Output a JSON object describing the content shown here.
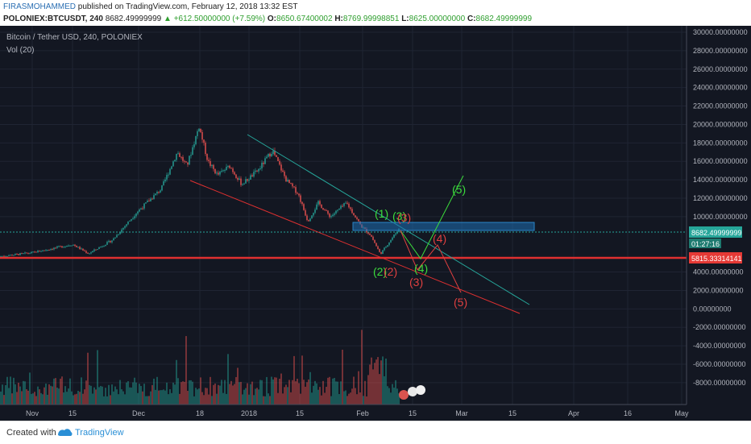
{
  "header": {
    "author": "FIRASMOHAMMED",
    "published": "published on TradingView.com, February 12, 2018 13:32 EST",
    "symbol": "POLONIEX:BTCUSDT, 240",
    "last": "8682.49999999",
    "change": "▲ +612.50000000 (+7.59%)",
    "o_label": "O:",
    "o": "8650.67400002",
    "h_label": "H:",
    "h": "8769.99998851",
    "l_label": "L:",
    "l": "8625.00000000",
    "c_label": "C:",
    "c": "8682.49999999"
  },
  "footer": {
    "created": "Created with",
    "brand": "TradingView",
    "logo_icon": "tradingview-logo-icon"
  },
  "colors": {
    "bg": "#131722",
    "up": "#26a69a",
    "down": "#ef5350",
    "grid": "#1f2433",
    "text": "#b2b5be",
    "wave_green": "#3cdc3c",
    "wave_red": "#e04040",
    "box": "#2a84c8"
  },
  "chart_data": {
    "type": "candlestick",
    "title": "Bitcoin / Tether USD, 240, POLONIEX",
    "indicator": "Vol (20)",
    "ylim": [
      -10000,
      30000
    ],
    "yticks": [
      "30000.00000000",
      "28000.00000000",
      "26000.00000000",
      "24000.00000000",
      "22000.00000000",
      "20000.00000000",
      "18000.00000000",
      "16000.00000000",
      "14000.00000000",
      "12000.00000000",
      "10000.00000000",
      "4000.00000000",
      "2000.00000000",
      "0.00000000",
      "-2000.00000000",
      "-4000.00000000",
      "-6000.00000000",
      "-8000.00000000"
    ],
    "xticks": [
      "Nov",
      "15",
      "Dec",
      "18",
      "2018",
      "15",
      "Feb",
      "15",
      "Mar",
      "15",
      "Apr",
      "16",
      "May"
    ],
    "price_path": [
      [
        0,
        5700
      ],
      [
        40,
        6100
      ],
      [
        90,
        7000
      ],
      [
        110,
        6000
      ],
      [
        140,
        7500
      ],
      [
        170,
        10500
      ],
      [
        200,
        13000
      ],
      [
        220,
        17000
      ],
      [
        232,
        15500
      ],
      [
        247,
        19800
      ],
      [
        258,
        16000
      ],
      [
        270,
        14500
      ],
      [
        285,
        15500
      ],
      [
        300,
        13500
      ],
      [
        320,
        15000
      ],
      [
        338,
        17200
      ],
      [
        355,
        14000
      ],
      [
        370,
        12500
      ],
      [
        382,
        9500
      ],
      [
        395,
        11500
      ],
      [
        410,
        10000
      ],
      [
        430,
        11500
      ],
      [
        448,
        9000
      ],
      [
        460,
        8000
      ],
      [
        472,
        5950
      ],
      [
        485,
        7500
      ],
      [
        495,
        8682
      ]
    ],
    "price_labels": [
      {
        "value": 8682.49999999,
        "text": "8682.49999999",
        "color": "#26a69a"
      },
      {
        "value": 5815.33314141,
        "text": "5815.33314141",
        "color": "#ef5350"
      }
    ],
    "countdown": "01:27:16",
    "wave_labels_green": [
      "(1)",
      "(2)",
      "(3)",
      "(4)",
      "(5)"
    ],
    "wave_labels_red": [
      "(2)",
      "(3)",
      "(4)",
      "(5)",
      "(3)"
    ]
  }
}
